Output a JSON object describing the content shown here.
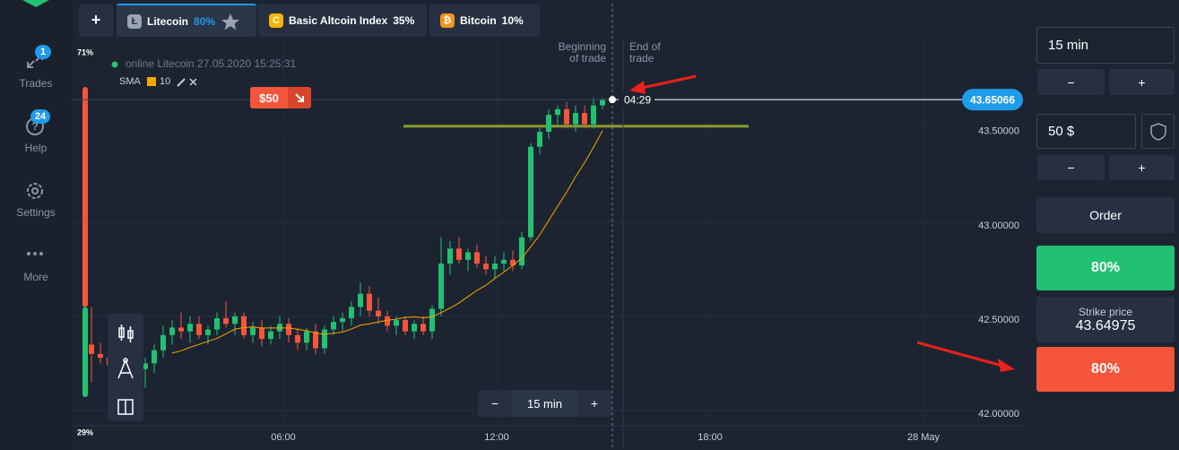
{
  "sidebar": {
    "items": [
      {
        "label": "Trades",
        "badge": "1"
      },
      {
        "label": "Help",
        "badge": "24"
      },
      {
        "label": "Settings"
      },
      {
        "label": "More"
      }
    ]
  },
  "tabbar": {
    "add": "+",
    "tabs": [
      {
        "icon": "Ł",
        "name": "Litecoin",
        "payout": "80%"
      },
      {
        "icon": "C",
        "name": "Basic Altcoin Index",
        "payout": "35%"
      },
      {
        "icon": "₿",
        "name": "Bitcoin",
        "payout": "10%"
      }
    ]
  },
  "chart": {
    "status": "online Litecoin 27.05.2020 15:25:31",
    "indicator": {
      "name": "SMA",
      "period": 10
    },
    "sentiment": {
      "top_label": "71%",
      "top": 71,
      "bottom_label": "29%",
      "bottom": 29
    },
    "trade_badge": "$50",
    "markers": {
      "beginning": [
        "Beginning",
        "of trade"
      ],
      "end": [
        "End of",
        "trade"
      ]
    },
    "timer": "04:29",
    "current_price": 43.65066,
    "level": 43.51,
    "ylim": [
      41.79,
      44.18
    ],
    "yticks": [
      {
        "value": 42,
        "label": "42.00000"
      },
      {
        "value": 42.5,
        "label": "42.50000"
      },
      {
        "value": 43,
        "label": "43.00000"
      },
      {
        "value": 43.5,
        "label": "43.50000"
      }
    ],
    "xticks": [
      "06:00",
      "12:00",
      "18:00",
      "28 May"
    ],
    "candles": [
      [
        42.35,
        42.55,
        42.15,
        42.3
      ],
      [
        42.3,
        42.36,
        42.25,
        42.28
      ],
      [
        42.28,
        42.32,
        42.2,
        42.24
      ],
      [
        42.24,
        42.3,
        42.18,
        42.27
      ],
      [
        42.27,
        42.35,
        42.22,
        42.33
      ],
      [
        42.33,
        42.36,
        42.2,
        42.22
      ],
      [
        42.22,
        42.28,
        42.12,
        42.25
      ],
      [
        42.25,
        42.35,
        42.2,
        42.32
      ],
      [
        42.32,
        42.45,
        42.28,
        42.4
      ],
      [
        42.4,
        42.48,
        42.35,
        42.44
      ],
      [
        42.44,
        42.52,
        42.38,
        42.42
      ],
      [
        42.42,
        42.5,
        42.36,
        42.46
      ],
      [
        42.46,
        42.5,
        42.38,
        42.4
      ],
      [
        42.4,
        42.45,
        42.35,
        42.43
      ],
      [
        42.43,
        42.52,
        42.4,
        42.49
      ],
      [
        42.49,
        42.58,
        42.44,
        42.46
      ],
      [
        42.46,
        42.52,
        42.4,
        42.5
      ],
      [
        42.5,
        42.52,
        42.38,
        42.4
      ],
      [
        42.4,
        42.47,
        42.36,
        42.44
      ],
      [
        42.44,
        42.48,
        42.34,
        42.38
      ],
      [
        42.38,
        42.45,
        42.35,
        42.42
      ],
      [
        42.42,
        42.5,
        42.38,
        42.46
      ],
      [
        42.46,
        42.49,
        42.36,
        42.4
      ],
      [
        42.4,
        42.44,
        42.32,
        42.36
      ],
      [
        42.36,
        42.44,
        42.32,
        42.42
      ],
      [
        42.42,
        42.46,
        42.3,
        42.33
      ],
      [
        42.33,
        42.45,
        42.3,
        42.43
      ],
      [
        42.43,
        42.5,
        42.4,
        42.47
      ],
      [
        42.47,
        42.52,
        42.42,
        42.49
      ],
      [
        42.49,
        42.58,
        42.45,
        42.55
      ],
      [
        42.55,
        42.68,
        42.5,
        42.62
      ],
      [
        42.62,
        42.66,
        42.5,
        42.53
      ],
      [
        42.53,
        42.6,
        42.46,
        42.5
      ],
      [
        42.5,
        42.53,
        42.42,
        42.45
      ],
      [
        42.45,
        42.5,
        42.4,
        42.48
      ],
      [
        42.48,
        42.5,
        42.4,
        42.42
      ],
      [
        42.42,
        42.48,
        42.38,
        42.46
      ],
      [
        42.46,
        42.5,
        42.4,
        42.42
      ],
      [
        42.42,
        42.56,
        42.38,
        42.54
      ],
      [
        42.54,
        42.92,
        42.5,
        42.78
      ],
      [
        42.78,
        42.9,
        42.72,
        42.86
      ],
      [
        42.86,
        42.92,
        42.78,
        42.8
      ],
      [
        42.8,
        42.86,
        42.74,
        42.84
      ],
      [
        42.84,
        42.88,
        42.76,
        42.78
      ],
      [
        42.78,
        42.82,
        42.72,
        42.75
      ],
      [
        42.75,
        42.82,
        42.7,
        42.78
      ],
      [
        42.78,
        42.84,
        42.74,
        42.8
      ],
      [
        42.8,
        42.85,
        42.74,
        42.77
      ],
      [
        42.77,
        42.95,
        42.75,
        42.92
      ],
      [
        42.92,
        43.42,
        42.9,
        43.4
      ],
      [
        43.4,
        43.5,
        43.36,
        43.48
      ],
      [
        43.48,
        43.6,
        43.44,
        43.57
      ],
      [
        43.57,
        43.62,
        43.52,
        43.6
      ],
      [
        43.6,
        43.64,
        43.5,
        43.52
      ],
      [
        43.52,
        43.62,
        43.48,
        43.58
      ],
      [
        43.58,
        43.62,
        43.5,
        43.52
      ],
      [
        43.52,
        43.66,
        43.5,
        43.62
      ],
      [
        43.62,
        43.66,
        43.6,
        43.65
      ]
    ],
    "timeframe_control": {
      "minus": "−",
      "value": "15 min",
      "plus": "+"
    }
  },
  "panel": {
    "timeframe": "15 min",
    "timeframe_minus": "−",
    "timeframe_plus": "+",
    "amount": "50 $",
    "amount_minus": "−",
    "amount_plus": "+",
    "order": "Order",
    "up_payout": "80%",
    "strike_label": "Strike price",
    "strike_value": "43.64975",
    "down_payout": "80%"
  }
}
